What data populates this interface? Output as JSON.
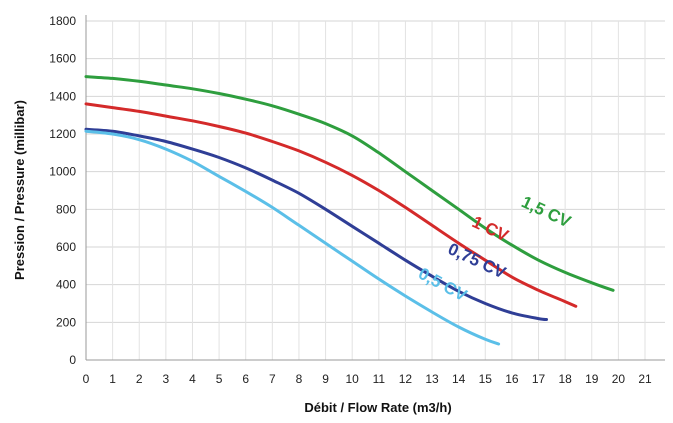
{
  "chart_data": {
    "type": "line",
    "xlabel": "Débit / Flow Rate (m3/h)",
    "ylabel": "Pression / Pressure (millibar)",
    "xlim": [
      0,
      21
    ],
    "ylim": [
      0,
      1800
    ],
    "x_ticks": [
      "0",
      "1",
      "2",
      "3",
      "4",
      "5",
      "6",
      "7",
      "8",
      "9",
      "10",
      "11",
      "12",
      "13",
      "14",
      "15",
      "16",
      "17",
      "18",
      "19",
      "20",
      "21"
    ],
    "y_ticks": [
      "0",
      "200",
      "400",
      "600",
      "800",
      "1000",
      "1200",
      "1400",
      "1600",
      "1800"
    ],
    "grid": true,
    "series": [
      {
        "name": "1,5 CV",
        "color": "#2e9e3e",
        "points": [
          [
            0,
            1505
          ],
          [
            1,
            1495
          ],
          [
            2,
            1480
          ],
          [
            3,
            1460
          ],
          [
            4,
            1440
          ],
          [
            5,
            1415
          ],
          [
            6,
            1385
          ],
          [
            7,
            1350
          ],
          [
            8,
            1305
          ],
          [
            9,
            1255
          ],
          [
            10,
            1190
          ],
          [
            11,
            1100
          ],
          [
            12,
            1000
          ],
          [
            13,
            900
          ],
          [
            14,
            800
          ],
          [
            15,
            700
          ],
          [
            16,
            610
          ],
          [
            17,
            530
          ],
          [
            18,
            465
          ],
          [
            19,
            410
          ],
          [
            19.8,
            370
          ]
        ]
      },
      {
        "name": "1 CV",
        "color": "#d42a2a",
        "points": [
          [
            0,
            1360
          ],
          [
            1,
            1340
          ],
          [
            2,
            1320
          ],
          [
            3,
            1295
          ],
          [
            4,
            1270
          ],
          [
            5,
            1240
          ],
          [
            6,
            1205
          ],
          [
            7,
            1160
          ],
          [
            8,
            1110
          ],
          [
            9,
            1050
          ],
          [
            10,
            980
          ],
          [
            11,
            900
          ],
          [
            12,
            810
          ],
          [
            13,
            715
          ],
          [
            14,
            620
          ],
          [
            15,
            530
          ],
          [
            16,
            440
          ],
          [
            17,
            370
          ],
          [
            18,
            310
          ],
          [
            18.4,
            285
          ]
        ]
      },
      {
        "name": "0,75 CV",
        "color": "#2f3e96",
        "points": [
          [
            0,
            1225
          ],
          [
            1,
            1215
          ],
          [
            2,
            1190
          ],
          [
            3,
            1160
          ],
          [
            4,
            1120
          ],
          [
            5,
            1075
          ],
          [
            6,
            1020
          ],
          [
            7,
            955
          ],
          [
            8,
            885
          ],
          [
            9,
            800
          ],
          [
            10,
            710
          ],
          [
            11,
            620
          ],
          [
            12,
            530
          ],
          [
            13,
            445
          ],
          [
            14,
            365
          ],
          [
            15,
            300
          ],
          [
            16,
            250
          ],
          [
            17,
            220
          ],
          [
            17.3,
            215
          ]
        ]
      },
      {
        "name": "0,5 CV",
        "color": "#5bbfe8",
        "points": [
          [
            0,
            1215
          ],
          [
            1,
            1200
          ],
          [
            2,
            1170
          ],
          [
            3,
            1120
          ],
          [
            4,
            1055
          ],
          [
            5,
            975
          ],
          [
            6,
            895
          ],
          [
            7,
            810
          ],
          [
            8,
            715
          ],
          [
            9,
            620
          ],
          [
            10,
            525
          ],
          [
            11,
            430
          ],
          [
            12,
            340
          ],
          [
            13,
            255
          ],
          [
            14,
            175
          ],
          [
            15,
            110
          ],
          [
            15.5,
            85
          ]
        ]
      }
    ]
  }
}
